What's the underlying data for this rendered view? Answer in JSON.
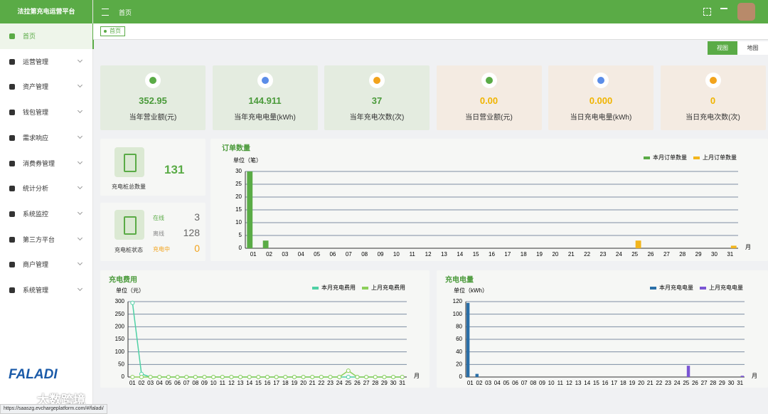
{
  "brand": "法拉第充电运营平台",
  "menu": [
    "首页",
    "运营管理",
    "资产管理",
    "钱包管理",
    "需求响应",
    "消费券管理",
    "统计分析",
    "系统监控",
    "第三方平台",
    "商户管理",
    "系统管理"
  ],
  "header": {
    "breadcrumb": "首页",
    "tab": "首页"
  },
  "view_toggle": [
    "视图",
    "地图"
  ],
  "stats": [
    {
      "value": "352.95",
      "label": "当年营业额(元)"
    },
    {
      "value": "144.911",
      "label": "当年充电电量(kWh)"
    },
    {
      "value": "37",
      "label": "当年充电次数(次)"
    },
    {
      "value": "0.00",
      "label": "当日营业额(元)"
    },
    {
      "value": "0.000",
      "label": "当日充电电量(kWh)"
    },
    {
      "value": "0",
      "label": "当日充电次数(次)"
    }
  ],
  "pile_total": {
    "label": "充电桩总数量",
    "value": "131"
  },
  "pile_status": {
    "label": "充电桩状态",
    "items": [
      {
        "name": "在线",
        "value": "3"
      },
      {
        "name": "离线",
        "value": "128"
      },
      {
        "name": "充电中",
        "value": "0"
      }
    ]
  },
  "watermark": {
    "logo": "FALADI",
    "brand": "大数跨境",
    "url": "https://saaszg.evchargeplatform.com/#/faladi/"
  },
  "chart_data": [
    {
      "type": "bar",
      "title": "订单数量",
      "unit_label": "单位（笔）",
      "x_unit": "月",
      "legend": "top-right",
      "grid": true,
      "categories": [
        "01",
        "02",
        "03",
        "04",
        "05",
        "06",
        "07",
        "08",
        "09",
        "10",
        "11",
        "12",
        "13",
        "14",
        "15",
        "16",
        "17",
        "18",
        "19",
        "20",
        "21",
        "22",
        "23",
        "24",
        "25",
        "26",
        "27",
        "28",
        "29",
        "30",
        "31"
      ],
      "series": [
        {
          "name": "本月订单数量",
          "color": "#5aab46",
          "values": [
            30,
            3,
            0,
            0,
            0,
            0,
            0,
            0,
            0,
            0,
            0,
            0,
            0,
            0,
            0,
            0,
            0,
            0,
            0,
            0,
            0,
            0,
            0,
            0,
            0,
            0,
            0,
            0,
            0,
            0,
            0
          ]
        },
        {
          "name": "上月订单数量",
          "color": "#f2b51c",
          "values": [
            0,
            0,
            0,
            0,
            0,
            0,
            0,
            0,
            0,
            0,
            0,
            0,
            0,
            0,
            0,
            0,
            0,
            0,
            0,
            0,
            0,
            0,
            0,
            0,
            3,
            0,
            0,
            0,
            0,
            0,
            1
          ]
        }
      ],
      "ylim": [
        0,
        30
      ],
      "yticks": [
        0,
        5,
        10,
        15,
        20,
        25,
        30
      ]
    },
    {
      "type": "line",
      "title": "充电费用",
      "unit_label": "单位（元）",
      "x_unit": "月",
      "legend": "top-right",
      "grid": true,
      "categories": [
        "01",
        "02",
        "03",
        "04",
        "05",
        "06",
        "07",
        "08",
        "09",
        "10",
        "11",
        "12",
        "13",
        "14",
        "15",
        "16",
        "17",
        "18",
        "19",
        "20",
        "21",
        "22",
        "23",
        "24",
        "25",
        "26",
        "27",
        "28",
        "29",
        "30",
        "31"
      ],
      "series": [
        {
          "name": "本月充电费用",
          "color": "#4fd1a5",
          "values": [
            295,
            12,
            0,
            0,
            0,
            0,
            0,
            0,
            0,
            0,
            0,
            0,
            0,
            0,
            0,
            0,
            0,
            0,
            0,
            0,
            0,
            0,
            0,
            0,
            0,
            0,
            0,
            0,
            0,
            0,
            0
          ]
        },
        {
          "name": "上月充电费用",
          "color": "#8ccf5a",
          "values": [
            0,
            0,
            0,
            0,
            0,
            0,
            0,
            0,
            0,
            0,
            0,
            0,
            0,
            0,
            0,
            0,
            0,
            0,
            0,
            0,
            0,
            0,
            0,
            0,
            25,
            0,
            0,
            0,
            0,
            0,
            0
          ]
        }
      ],
      "ylim": [
        0,
        300
      ],
      "yticks": [
        0,
        50,
        100,
        150,
        200,
        250,
        300
      ]
    },
    {
      "type": "bar",
      "title": "充电电量",
      "unit_label": "单位（kWh）",
      "x_unit": "月",
      "legend": "top-right",
      "grid": true,
      "categories": [
        "01",
        "02",
        "03",
        "04",
        "05",
        "06",
        "07",
        "08",
        "09",
        "10",
        "11",
        "12",
        "13",
        "14",
        "15",
        "16",
        "17",
        "18",
        "19",
        "20",
        "21",
        "22",
        "23",
        "24",
        "25",
        "26",
        "27",
        "28",
        "29",
        "30",
        "31"
      ],
      "series": [
        {
          "name": "本月充电电量",
          "color": "#2a6fa8",
          "values": [
            118,
            5,
            0,
            0,
            0,
            0,
            0,
            0,
            0,
            0,
            0,
            0,
            0,
            0,
            0,
            0,
            0,
            0,
            0,
            0,
            0,
            0,
            0,
            0,
            0,
            0,
            0,
            0,
            0,
            0,
            0
          ]
        },
        {
          "name": "上月充电电量",
          "color": "#7a55d4",
          "values": [
            0,
            0,
            0,
            0,
            0,
            0,
            0,
            0,
            0,
            0,
            0,
            0,
            0,
            0,
            0,
            0,
            0,
            0,
            0,
            0,
            0,
            0,
            0,
            0,
            18,
            0,
            0,
            0,
            0,
            0,
            2
          ]
        }
      ],
      "ylim": [
        0,
        120
      ],
      "yticks": [
        0,
        20,
        40,
        60,
        80,
        100,
        120
      ]
    }
  ]
}
